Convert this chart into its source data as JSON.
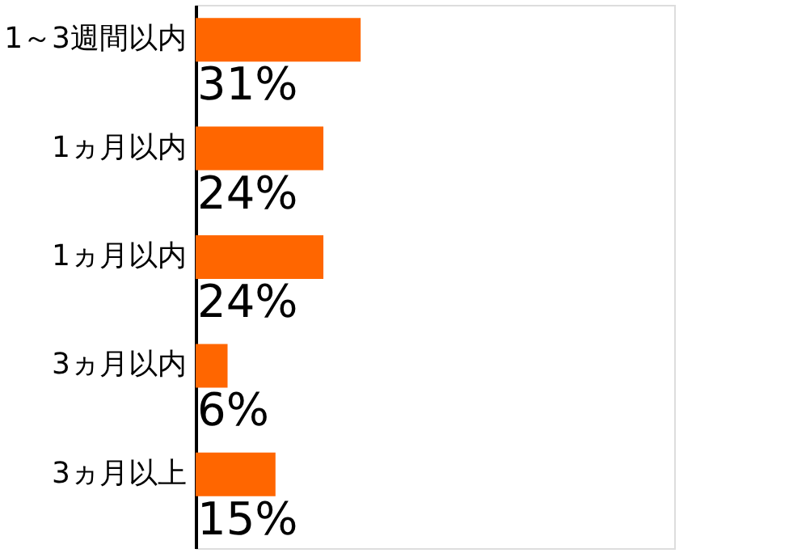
{
  "chart_data": {
    "type": "bar",
    "orientation": "horizontal",
    "categories": [
      "1～3週間以内",
      "1ヵ月以内",
      "1ヵ月以内",
      "3ヵ月以内",
      "3ヵ月以上"
    ],
    "values": [
      31,
      24,
      24,
      6,
      15
    ],
    "value_labels": [
      "31%",
      "24%",
      "24%",
      "6%",
      "15%"
    ],
    "color": "#ff6600",
    "grid": false
  }
}
